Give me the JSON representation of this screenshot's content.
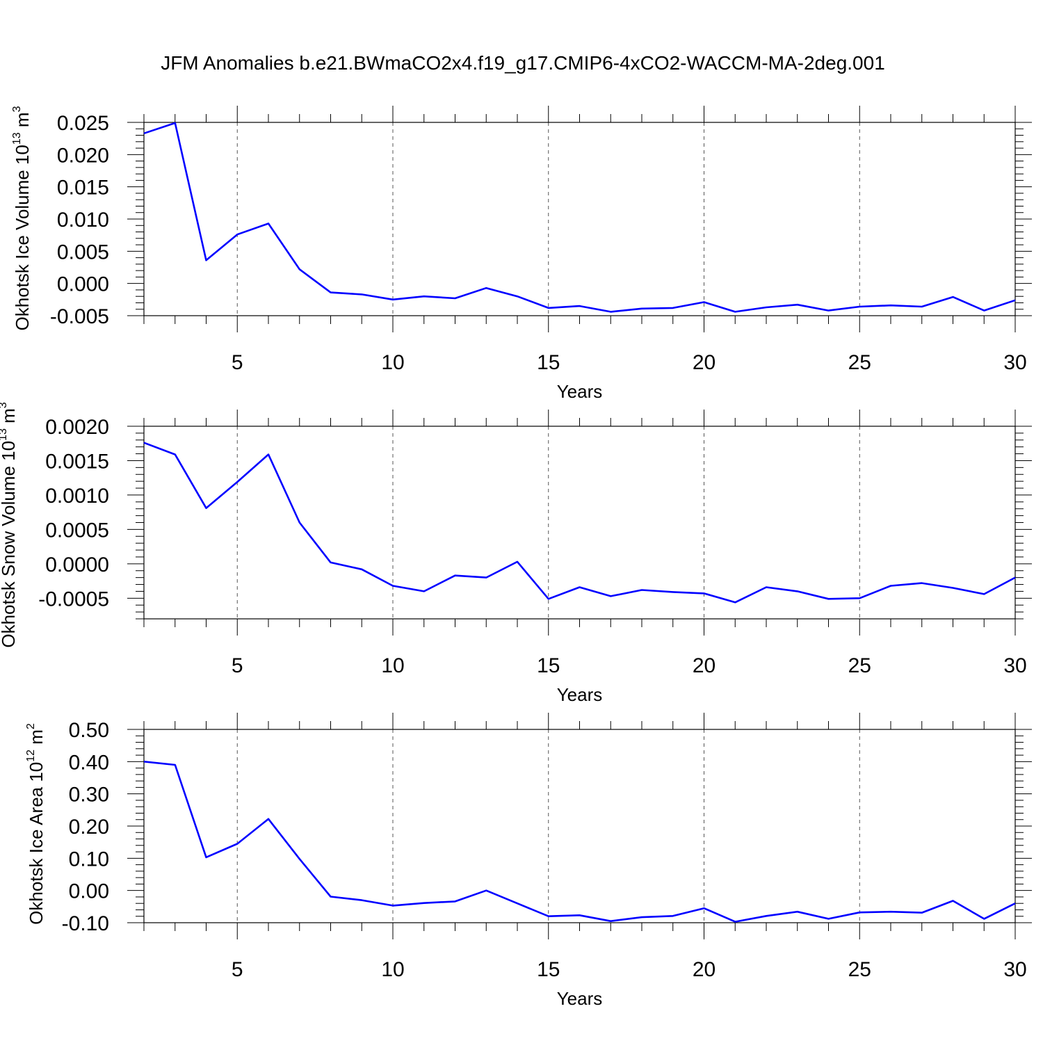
{
  "title": "JFM Anomalies b.e21.BWmaCO2x4.f19_g17.CMIP6-4xCO2-WACCM-MA-2deg.001",
  "colors": {
    "line": "#0000ff",
    "grid": "#555555",
    "axis": "#000000"
  },
  "chart_data": [
    {
      "type": "line",
      "ylabel": "Okhotsk Ice Volume 10",
      "ylabel_sup": "13",
      "ylabel_unit": " m",
      "ylabel_unit_sup": "3",
      "xlabel": "Years",
      "xlim": [
        2,
        30
      ],
      "ylim": [
        -0.005,
        0.025
      ],
      "xticks": [
        5,
        10,
        15,
        20,
        25,
        30
      ],
      "yticks": [
        -0.005,
        0,
        0.005,
        0.01,
        0.015,
        0.02,
        0.025
      ],
      "ytick_labels": [
        "-0.005",
        "0.000",
        "0.005",
        "0.010",
        "0.015",
        "0.020",
        "0.025"
      ],
      "grid": "vertical dashed at major x ticks",
      "x": [
        2,
        3,
        4,
        5,
        6,
        7,
        8,
        9,
        10,
        11,
        12,
        13,
        14,
        15,
        16,
        17,
        18,
        19,
        20,
        21,
        22,
        23,
        24,
        25,
        26,
        27,
        28,
        29,
        30
      ],
      "series": [
        {
          "values": [
            0.0233,
            0.0249,
            0.0036,
            0.0076,
            0.0093,
            0.0022,
            -0.0014,
            -0.0017,
            -0.0025,
            -0.002,
            -0.0023,
            -0.0007,
            -0.002,
            -0.0038,
            -0.0035,
            -0.0044,
            -0.0039,
            -0.0038,
            -0.0029,
            -0.0044,
            -0.0037,
            -0.0033,
            -0.0042,
            -0.0036,
            -0.0034,
            -0.0036,
            -0.0021,
            -0.0042,
            -0.0026
          ]
        }
      ]
    },
    {
      "type": "line",
      "ylabel": "Okhotsk Snow Volume 10",
      "ylabel_sup": "13",
      "ylabel_unit": " m",
      "ylabel_unit_sup": "3",
      "xlabel": "Years",
      "xlim": [
        2,
        30
      ],
      "ylim": [
        -0.0008,
        0.002
      ],
      "xticks": [
        5,
        10,
        15,
        20,
        25,
        30
      ],
      "yticks": [
        -0.0005,
        0,
        0.0005,
        0.001,
        0.0015,
        0.002
      ],
      "ytick_labels": [
        "-0.0005",
        "0.0000",
        "0.0005",
        "0.0010",
        "0.0015",
        "0.0020"
      ],
      "grid": "vertical dashed at major x ticks",
      "x": [
        2,
        3,
        4,
        5,
        6,
        7,
        8,
        9,
        10,
        11,
        12,
        13,
        14,
        15,
        16,
        17,
        18,
        19,
        20,
        21,
        22,
        23,
        24,
        25,
        26,
        27,
        28,
        29,
        30
      ],
      "series": [
        {
          "values": [
            0.00176,
            0.00159,
            0.00081,
            0.00119,
            0.00159,
            0.0006,
            2e-05,
            -8e-05,
            -0.00032,
            -0.0004,
            -0.00017,
            -0.0002,
            3e-05,
            -0.00051,
            -0.00034,
            -0.00047,
            -0.00038,
            -0.00041,
            -0.00043,
            -0.00056,
            -0.00034,
            -0.0004,
            -0.00051,
            -0.0005,
            -0.00032,
            -0.00028,
            -0.00035,
            -0.00044,
            -0.0002
          ]
        }
      ]
    },
    {
      "type": "line",
      "ylabel": "Okhotsk Ice Area 10",
      "ylabel_sup": "12",
      "ylabel_unit": " m",
      "ylabel_unit_sup": "2",
      "xlabel": "Years",
      "xlim": [
        2,
        30
      ],
      "ylim": [
        -0.1,
        0.5
      ],
      "xticks": [
        5,
        10,
        15,
        20,
        25,
        30
      ],
      "yticks": [
        -0.1,
        0,
        0.1,
        0.2,
        0.3,
        0.4,
        0.5
      ],
      "ytick_labels": [
        "-0.10",
        "0.00",
        "0.10",
        "0.20",
        "0.30",
        "0.40",
        "0.50"
      ],
      "grid": "vertical dashed at major x ticks",
      "x": [
        2,
        3,
        4,
        5,
        6,
        7,
        8,
        9,
        10,
        11,
        12,
        13,
        14,
        15,
        16,
        17,
        18,
        19,
        20,
        21,
        22,
        23,
        24,
        25,
        26,
        27,
        28,
        29,
        30
      ],
      "series": [
        {
          "values": [
            0.4,
            0.39,
            0.103,
            0.145,
            0.222,
            0.098,
            -0.019,
            -0.03,
            -0.047,
            -0.039,
            -0.034,
            0.0,
            -0.04,
            -0.08,
            -0.077,
            -0.095,
            -0.083,
            -0.079,
            -0.055,
            -0.097,
            -0.079,
            -0.066,
            -0.088,
            -0.068,
            -0.066,
            -0.069,
            -0.032,
            -0.088,
            -0.04
          ]
        }
      ]
    }
  ]
}
